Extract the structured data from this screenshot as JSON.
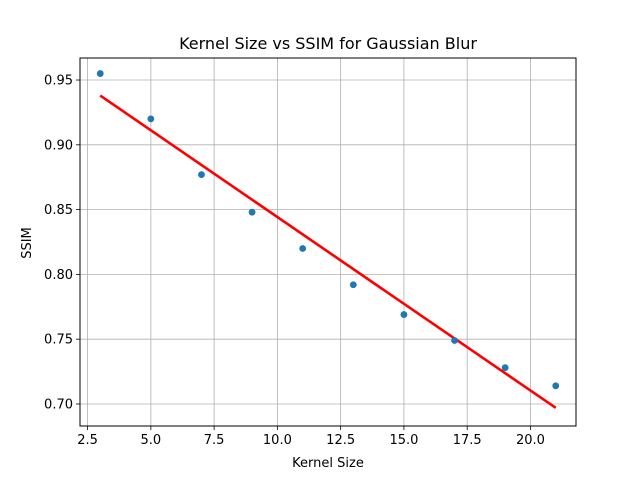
{
  "chart_data": {
    "type": "scatter",
    "title": "Kernel Size vs SSIM for Gaussian Blur",
    "xlabel": "Kernel Size",
    "ylabel": "SSIM",
    "xlim": [
      2.2,
      21.8
    ],
    "ylim": [
      0.683,
      0.967
    ],
    "x_ticks": [
      2.5,
      5.0,
      7.5,
      10.0,
      12.5,
      15.0,
      17.5,
      20.0
    ],
    "x_tick_labels": [
      "2.5",
      "5.0",
      "7.5",
      "10.0",
      "12.5",
      "15.0",
      "17.5",
      "20.0"
    ],
    "y_ticks": [
      0.7,
      0.75,
      0.8,
      0.85,
      0.9,
      0.95
    ],
    "y_tick_labels": [
      "0.70",
      "0.75",
      "0.80",
      "0.85",
      "0.90",
      "0.95"
    ],
    "grid": true,
    "series": [
      {
        "kind": "points",
        "color": "#1f77b4",
        "x": [
          3,
          5,
          7,
          9,
          11,
          13,
          15,
          17,
          19,
          21
        ],
        "y": [
          0.955,
          0.92,
          0.877,
          0.848,
          0.82,
          0.792,
          0.769,
          0.749,
          0.728,
          0.714
        ]
      },
      {
        "kind": "fit-line",
        "color": "#ff0000",
        "x": [
          3,
          21
        ],
        "y": [
          0.938,
          0.697
        ]
      }
    ]
  }
}
